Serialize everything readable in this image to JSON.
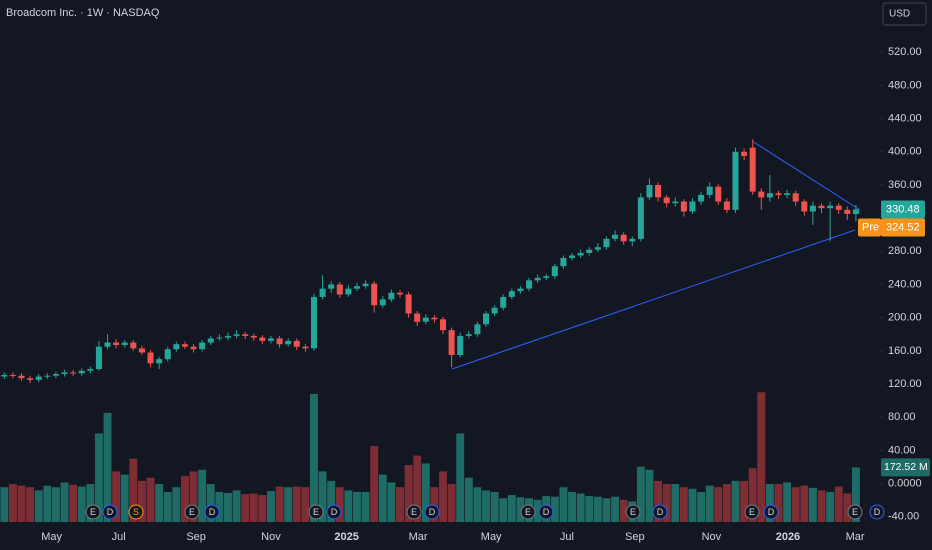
{
  "chart_data": {
    "type": "candlestick",
    "title": "Broadcom Inc. · 1W · NASDAQ",
    "currency": "USD",
    "up_color": "#26a69a",
    "down_color": "#ef5350",
    "volume_up_color": "#1f6b65",
    "volume_down_color": "#7d2d33",
    "xlim": [
      -0.5,
      101.8
    ],
    "xticks": [
      {
        "value": 5.5,
        "label": "May"
      },
      {
        "value": 13.3,
        "label": "Jul"
      },
      {
        "value": 22.3,
        "label": "Sep"
      },
      {
        "value": 31.0,
        "label": "Nov"
      },
      {
        "value": 39.8,
        "label": "2025"
      },
      {
        "value": 48.1,
        "label": "Mar"
      },
      {
        "value": 56.6,
        "label": "May"
      },
      {
        "value": 65.4,
        "label": "Jul"
      },
      {
        "value": 73.3,
        "label": "Sep"
      },
      {
        "value": 82.2,
        "label": "Nov"
      },
      {
        "value": 91.1,
        "label": "2026"
      },
      {
        "value": 98.9,
        "label": "Mar"
      }
    ],
    "ylim": [
      -56,
      583
    ],
    "yticks": [
      {
        "value": 520,
        "label": "520.00"
      },
      {
        "value": 480,
        "label": "480.00"
      },
      {
        "value": 440,
        "label": "440.00"
      },
      {
        "value": 400,
        "label": "400.00"
      },
      {
        "value": 360,
        "label": "360.00"
      },
      {
        "value": 320,
        "label": "320.00"
      },
      {
        "value": 280,
        "label": "280.00"
      },
      {
        "value": 240,
        "label": "240.00"
      },
      {
        "value": 200,
        "label": "200.00"
      },
      {
        "value": 160,
        "label": "160.00"
      },
      {
        "value": 120,
        "label": "120.00"
      },
      {
        "value": 80,
        "label": "80.00"
      },
      {
        "value": 40,
        "label": "40.00"
      },
      {
        "value": 0,
        "label": "0.0000"
      },
      {
        "value": -40,
        "label": "-40.00"
      }
    ],
    "vlim": [
      0,
      1650
    ],
    "open": [
      129,
      131,
      130,
      127,
      125,
      129,
      130,
      132,
      134,
      133,
      136,
      138,
      165,
      170,
      167,
      170,
      163,
      158,
      145,
      150,
      162,
      168,
      165,
      162,
      170,
      175,
      176,
      178,
      180,
      178,
      176,
      172,
      175,
      168,
      172,
      165,
      163,
      225,
      235,
      240,
      228,
      235,
      238,
      241,
      215,
      222,
      230,
      228,
      205,
      195,
      200,
      198,
      185,
      155,
      178,
      180,
      192,
      205,
      212,
      225,
      232,
      235,
      245,
      248,
      250,
      262,
      272,
      275,
      278,
      282,
      285,
      295,
      300,
      292,
      295,
      345,
      360,
      345,
      338,
      340,
      328,
      340,
      348,
      358,
      340,
      330,
      400,
      405,
      352,
      345,
      350,
      348,
      350,
      340,
      328,
      335,
      332,
      335,
      330,
      325
    ],
    "high": [
      134,
      134,
      133,
      130,
      132,
      133,
      135,
      137,
      137,
      139,
      141,
      172,
      180,
      174,
      173,
      173,
      166,
      161,
      153,
      165,
      171,
      171,
      168,
      173,
      178,
      180,
      182,
      185,
      183,
      181,
      179,
      178,
      178,
      175,
      175,
      168,
      229,
      251,
      244,
      243,
      239,
      242,
      245,
      244,
      226,
      234,
      233,
      231,
      208,
      204,
      203,
      201,
      188,
      182,
      184,
      195,
      208,
      215,
      228,
      235,
      238,
      248,
      252,
      253,
      265,
      275,
      278,
      282,
      285,
      290,
      298,
      305,
      303,
      298,
      350,
      368,
      363,
      348,
      345,
      343,
      344,
      352,
      363,
      361,
      344,
      405,
      404,
      415,
      356,
      372,
      353,
      354,
      353,
      343,
      340,
      338,
      340,
      338,
      334,
      336
    ],
    "low": [
      126,
      127,
      124,
      121,
      122,
      126,
      127,
      129,
      130,
      130,
      133,
      136,
      162,
      163,
      164,
      160,
      155,
      140,
      138,
      147,
      159,
      162,
      158,
      159,
      167,
      172,
      173,
      175,
      174,
      172,
      168,
      169,
      164,
      165,
      161,
      159,
      160,
      222,
      230,
      224,
      225,
      232,
      235,
      206,
      212,
      219,
      224,
      200,
      190,
      192,
      194,
      180,
      140,
      152,
      175,
      177,
      189,
      202,
      209,
      222,
      229,
      232,
      242,
      245,
      247,
      259,
      269,
      272,
      275,
      279,
      282,
      292,
      288,
      286,
      292,
      342,
      340,
      333,
      334,
      322,
      325,
      336,
      344,
      336,
      326,
      326,
      390,
      348,
      330,
      340,
      343,
      344,
      335,
      323,
      312,
      326,
      292,
      325,
      318,
      316
    ],
    "close": [
      131,
      130,
      127,
      125,
      129,
      130,
      132,
      134,
      133,
      136,
      138,
      165,
      170,
      167,
      170,
      163,
      158,
      145,
      150,
      162,
      168,
      165,
      162,
      170,
      175,
      176,
      178,
      180,
      178,
      176,
      172,
      175,
      168,
      172,
      165,
      163,
      225,
      235,
      240,
      228,
      235,
      238,
      241,
      215,
      222,
      230,
      228,
      205,
      195,
      200,
      198,
      185,
      155,
      178,
      180,
      192,
      205,
      212,
      225,
      232,
      235,
      245,
      248,
      250,
      262,
      272,
      275,
      278,
      282,
      285,
      295,
      300,
      292,
      295,
      345,
      360,
      345,
      338,
      340,
      328,
      340,
      348,
      358,
      340,
      330,
      400,
      395,
      352,
      345,
      350,
      348,
      350,
      340,
      328,
      335,
      332,
      335,
      330,
      325,
      330.48
    ],
    "volume": [
      110,
      120,
      115,
      110,
      100,
      115,
      110,
      125,
      118,
      112,
      120,
      280,
      345,
      160,
      150,
      200,
      130,
      140,
      120,
      95,
      110,
      145,
      160,
      165,
      120,
      95,
      92,
      100,
      88,
      90,
      85,
      98,
      112,
      110,
      112,
      110,
      405,
      160,
      130,
      110,
      100,
      95,
      95,
      240,
      150,
      125,
      110,
      180,
      210,
      185,
      110,
      160,
      120,
      280,
      140,
      110,
      100,
      95,
      75,
      85,
      78,
      75,
      70,
      82,
      80,
      110,
      95,
      90,
      82,
      80,
      75,
      80,
      70,
      65,
      175,
      165,
      130,
      120,
      120,
      110,
      105,
      95,
      115,
      110,
      120,
      130,
      130,
      170,
      410,
      120,
      120,
      125,
      110,
      115,
      108,
      100,
      95,
      112,
      90,
      172.52
    ],
    "last_volume_label": "172.52 M",
    "premarket": {
      "name": "Pre",
      "value": 324.52
    },
    "markers": [
      "E",
      "D",
      "S",
      "E",
      "D",
      "E",
      "D",
      "E",
      "D",
      "E",
      "D",
      "E",
      "D",
      "E",
      "D",
      "E",
      "D"
    ]
  }
}
